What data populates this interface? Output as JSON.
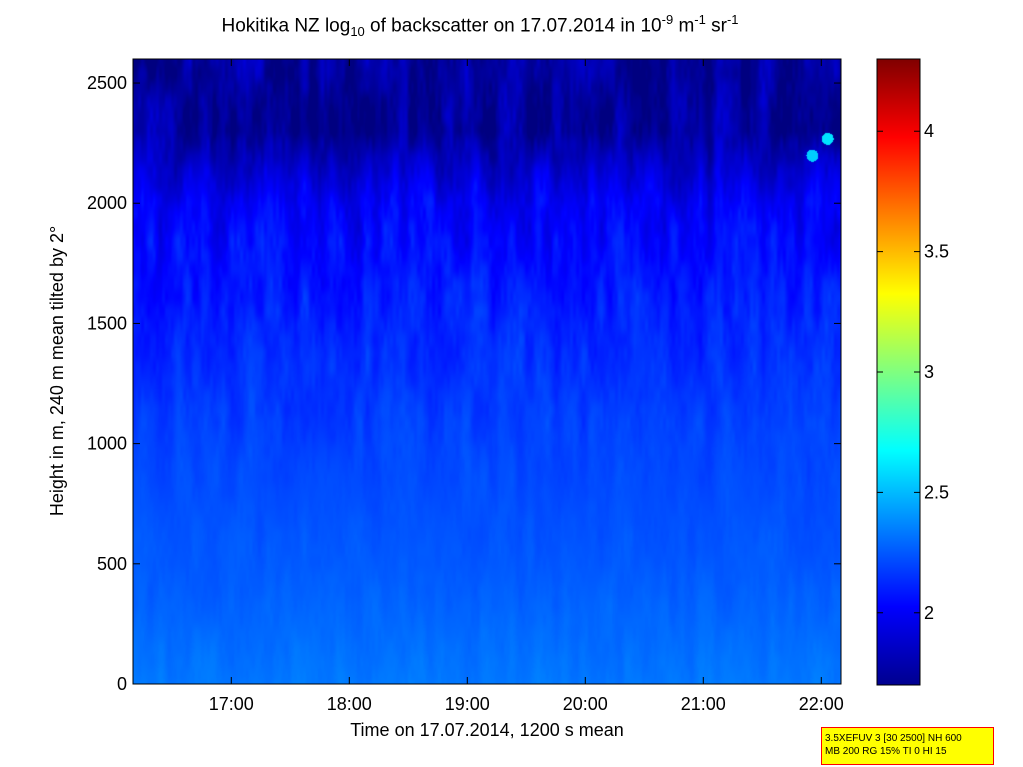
{
  "chart_data": {
    "type": "heatmap",
    "title_parts": {
      "a": "Hokitika NZ log",
      "a_sub": "10",
      "b": " of backscatter on 17.07.2014 in 10",
      "b_sup": "-9",
      "c": " m",
      "c_sup": "-1",
      "d": " sr",
      "d_sup": "-1"
    },
    "xlabel": "Time on 17.07.2014, 1200 s mean",
    "ylabel": "Height in m, 240 m mean tilted by 2°",
    "x_ticks": [
      "17:00",
      "18:00",
      "19:00",
      "20:00",
      "21:00",
      "22:00"
    ],
    "x_tick_hours": [
      17,
      18,
      19,
      20,
      21,
      22
    ],
    "xlim_hours": [
      16.167,
      22.167
    ],
    "y_ticks": [
      0,
      500,
      1000,
      1500,
      2000,
      2500
    ],
    "ylim": [
      0,
      2600
    ],
    "colorbar": {
      "ticks": [
        2,
        2.5,
        3,
        3.5,
        4
      ],
      "range": [
        1.7,
        4.3
      ],
      "colormap": "jet"
    },
    "field_description": {
      "surface_value": 2.33,
      "value_at_500m": 2.25,
      "value_at_1000m": 2.2,
      "value_at_1500m": 2.12,
      "value_at_2000m": 2.0,
      "value_above_2300m": 1.78,
      "cloud_patches": [
        {
          "time_hours": 22.05,
          "height_m": 2270,
          "value": 2.6
        },
        {
          "time_hours": 21.92,
          "height_m": 2200,
          "value": 2.55
        }
      ]
    }
  },
  "info_box": {
    "line1": "3.5XEFUV 3 [30 2500] NH 600",
    "line2": "MB 200 RG 15% TI 0 HI 15"
  }
}
